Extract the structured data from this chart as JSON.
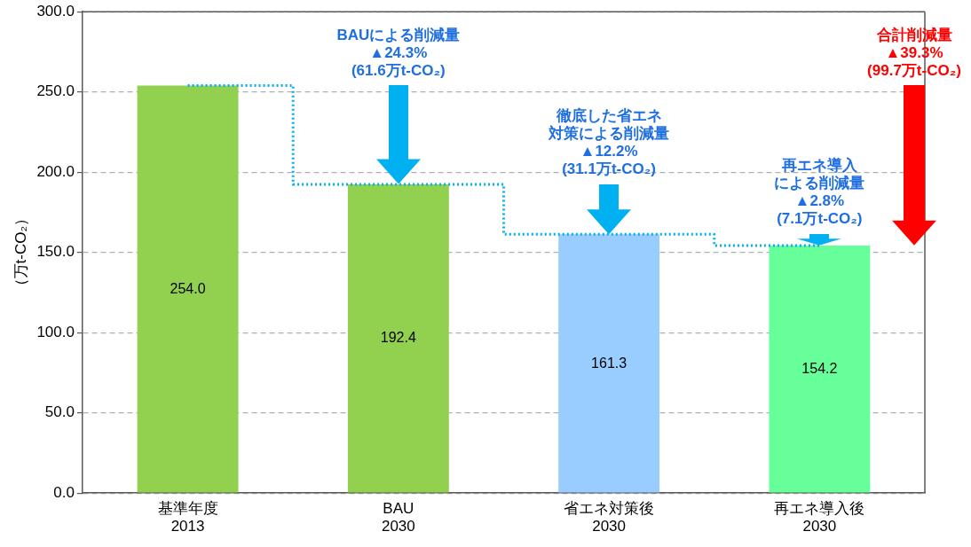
{
  "chart_data": {
    "type": "bar",
    "ylabel": "（万t-CO₂）",
    "categories": [
      "基準年度\n2013",
      "BAU\n2030",
      "省エネ対策後\n2030",
      "再エネ導入後\n2030"
    ],
    "series": [
      {
        "colors": [
          "#92d050",
          "#92d050",
          "#99ccff",
          "#66ff99"
        ],
        "values": [
          254.0,
          192.4,
          161.3,
          154.2
        ],
        "value_labels": [
          "254.0",
          "192.4",
          "161.3",
          "154.2"
        ]
      },
      {
        "type": "step",
        "color": "#00b0f0",
        "line_style": "dotted",
        "marker": "none",
        "values": [
          254.0,
          192.4,
          161.3,
          154.2
        ]
      }
    ],
    "ylim": [
      0,
      300
    ],
    "yticks": [
      {
        "value": 0,
        "label": "0.0"
      },
      {
        "value": 50,
        "label": "50.0"
      },
      {
        "value": 100,
        "label": "100.0"
      },
      {
        "value": 150,
        "label": "150.0"
      },
      {
        "value": 200,
        "label": "200.0"
      },
      {
        "value": 250,
        "label": "250.0"
      },
      {
        "value": 300,
        "label": "300.0"
      }
    ],
    "grid": "y",
    "legend": false,
    "annotations": [
      "BAUによる削減量\n▲24.3%\n(61.6万t-CO₂)",
      "徹底した省エネ対策による削減量\n▲12.2%\n(31.1万t-CO₂)",
      "再エネ導入による削減量\n▲2.8%\n(7.1万t-CO₂)",
      "合計削減量\n▲39.3%\n(99.7万t-CO₂)"
    ]
  }
}
